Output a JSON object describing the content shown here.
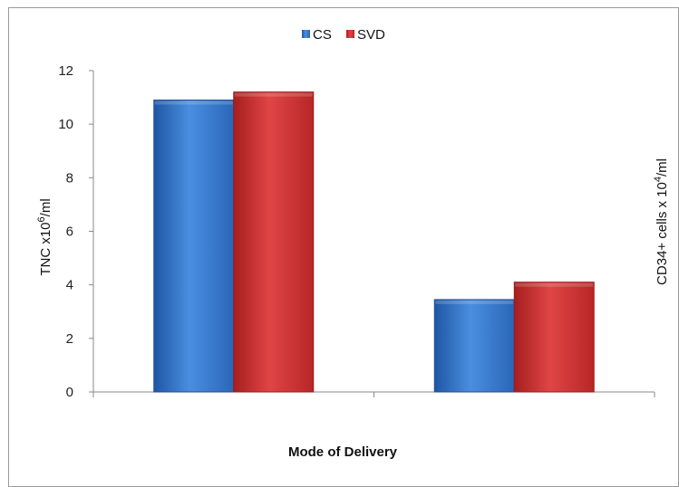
{
  "chart_data": {
    "type": "bar",
    "categories": [
      "",
      ""
    ],
    "series": [
      {
        "name": "CS",
        "values": [
          10.9,
          3.45
        ],
        "color": "#2f6fbf"
      },
      {
        "name": "SVD",
        "values": [
          11.2,
          4.1
        ],
        "color": "#c92a2a"
      }
    ],
    "ylabel_main": "TNC x10",
    "ylabel_sup": "6",
    "ylabel_tail": "/ml",
    "xlabel": "Mode of Delivery",
    "right_label": "CD34+ cells x  10",
    "right_label_sup": "4",
    "right_label_tail": "/ml",
    "ylim": [
      0,
      12
    ],
    "yticks": [
      "0",
      "2",
      "4",
      "6",
      "8",
      "10",
      "12"
    ],
    "legend_position": "top-center",
    "grid": false
  }
}
